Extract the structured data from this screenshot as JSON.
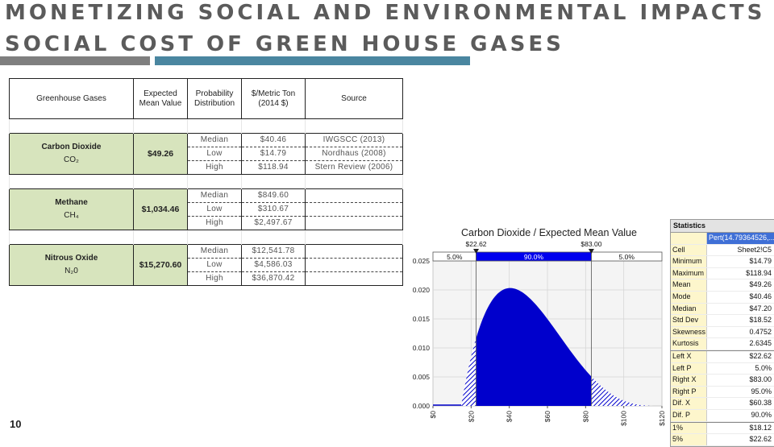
{
  "header": {
    "title_line1": "MONETIZING SOCIAL AND ENVIRONMENTAL IMPACTS",
    "title_line2": "SOCIAL COST OF GREEN HOUSE GASES",
    "page_number": "10",
    "colors": {
      "title": "#5b5b5b",
      "rule_left": "#7f7f7f",
      "rule_right": "#4a86a0"
    }
  },
  "table": {
    "headers": {
      "gas": "Greenhouse Gases",
      "mean": "Expected Mean Value",
      "dist": "Probability Distribution",
      "cost": "$/Metric Ton (2014 $)",
      "source": "Source"
    },
    "gases": [
      {
        "name": "Carbon Dioxide",
        "formula": "CO₂",
        "mean": "$49.26",
        "rows": [
          {
            "dist": "Median",
            "value": "$40.46",
            "source": "IWGSCC (2013)"
          },
          {
            "dist": "Low",
            "value": "$14.79",
            "source": "Nordhaus (2008)"
          },
          {
            "dist": "High",
            "value": "$118.94",
            "source": "Stern Review (2006)"
          }
        ]
      },
      {
        "name": "Methane",
        "formula": "CH₄",
        "mean": "$1,034.46",
        "rows": [
          {
            "dist": "Median",
            "value": "$849.60",
            "source": ""
          },
          {
            "dist": "Low",
            "value": "$310.67",
            "source": ""
          },
          {
            "dist": "High",
            "value": "$2,497.67",
            "source": ""
          }
        ]
      },
      {
        "name": "Nitrous Oxide",
        "formula": "N₂0",
        "mean": "$15,270.60",
        "rows": [
          {
            "dist": "Median",
            "value": "$12,541.78",
            "source": ""
          },
          {
            "dist": "Low",
            "value": "$4,586.03",
            "source": ""
          },
          {
            "dist": "High",
            "value": "$36,870.42",
            "source": ""
          }
        ]
      }
    ],
    "colors": {
      "gas_fill": "#d7e4bd"
    }
  },
  "chart_data": {
    "type": "area",
    "title": "Carbon Dioxide / Expected Mean Value",
    "distribution": "Pert",
    "min": 14.79,
    "mode": 40.46,
    "max": 118.94,
    "xlim": [
      0,
      120
    ],
    "ylim": [
      0,
      0.025
    ],
    "x_ticks": [
      "$0",
      "$20",
      "$40",
      "$60",
      "$80",
      "$100",
      "$120"
    ],
    "x_tick_values": [
      0,
      20,
      40,
      60,
      80,
      100,
      120
    ],
    "y_ticks": [
      "0.000",
      "0.005",
      "0.010",
      "0.015",
      "0.020",
      "0.025"
    ],
    "y_tick_values": [
      0,
      0.005,
      0.01,
      0.015,
      0.02,
      0.025
    ],
    "markers": {
      "left": {
        "value": 22.62,
        "label": "$22.62"
      },
      "right": {
        "value": 83.0,
        "label": "$83.00"
      }
    },
    "band": {
      "left_pct": "5.0%",
      "mid_pct": "90.0%",
      "right_pct": "5.0%"
    },
    "colors": {
      "fill": "#0000cc",
      "band_mid": "#0000ee",
      "plot_bg": "#f4f4f4"
    },
    "grid": true
  },
  "stats": {
    "title": "Statistics",
    "fit_label": "Pert(14.79364526,...",
    "rows": [
      {
        "k": "Cell",
        "v": "Sheet2!C5"
      },
      {
        "k": "Minimum",
        "v": "$14.79"
      },
      {
        "k": "Maximum",
        "v": "$118.94"
      },
      {
        "k": "Mean",
        "v": "$49.26"
      },
      {
        "k": "Mode",
        "v": "$40.46"
      },
      {
        "k": "Median",
        "v": "$47.20"
      },
      {
        "k": "Std Dev",
        "v": "$18.52"
      },
      {
        "k": "Skewness",
        "v": "0.4752"
      },
      {
        "k": "Kurtosis",
        "v": "2.6345"
      },
      {
        "k": "Left X",
        "v": "$22.62",
        "sep": true
      },
      {
        "k": "Left P",
        "v": "5.0%"
      },
      {
        "k": "Right X",
        "v": "$83.00"
      },
      {
        "k": "Right P",
        "v": "95.0%"
      },
      {
        "k": "Dif. X",
        "v": "$60.38"
      },
      {
        "k": "Dif. P",
        "v": "90.0%"
      },
      {
        "k": "1%",
        "v": "$18.12",
        "sep": true
      },
      {
        "k": "5%",
        "v": "$22.62"
      }
    ]
  }
}
